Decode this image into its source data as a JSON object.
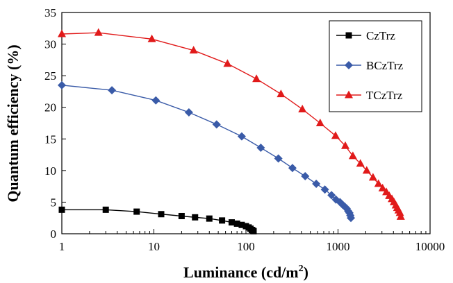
{
  "chart_data": {
    "type": "scatter",
    "xlabel": "Luminance (cd/m",
    "xlabel_sup": "2",
    "xlabel_end": ")",
    "ylabel": "Quantum efficiency (%)",
    "xscale": "log",
    "xlim": [
      1,
      10000
    ],
    "ylim": [
      0,
      35
    ],
    "xticks": [
      1,
      10,
      100,
      1000,
      10000
    ],
    "xtick_labels": [
      "1",
      "10",
      "100",
      "1000",
      "10000"
    ],
    "yticks": [
      0,
      5,
      10,
      15,
      20,
      25,
      30,
      35
    ],
    "ytick_labels": [
      "0",
      "5",
      "10",
      "15",
      "20",
      "25",
      "30",
      "35"
    ],
    "grid": false,
    "legend_position": "top-right",
    "series": [
      {
        "name": "CzTrz",
        "color": "#000000",
        "marker": "square",
        "x": [
          1,
          3,
          6.5,
          12,
          20,
          28,
          40,
          55,
          70,
          80,
          90,
          100,
          107,
          112,
          116,
          119,
          121
        ],
        "y": [
          3.8,
          3.8,
          3.5,
          3.1,
          2.8,
          2.6,
          2.4,
          2.1,
          1.8,
          1.6,
          1.4,
          1.2,
          1.0,
          0.8,
          0.6,
          0.5,
          0.4
        ]
      },
      {
        "name": "BCzTrz",
        "color": "#3a5ba8",
        "marker": "diamond",
        "x": [
          1,
          3.5,
          10.5,
          24,
          48,
          90,
          145,
          225,
          320,
          440,
          580,
          720,
          850,
          950,
          1050,
          1120,
          1180,
          1240,
          1290,
          1330,
          1360,
          1380
        ],
        "y": [
          23.5,
          22.7,
          21.1,
          19.2,
          17.3,
          15.4,
          13.6,
          11.9,
          10.4,
          9.1,
          7.9,
          7.0,
          6.1,
          5.4,
          5.0,
          4.6,
          4.3,
          4.0,
          3.6,
          3.3,
          2.9,
          2.5
        ]
      },
      {
        "name": "TCzTrz",
        "color": "#e11a1a",
        "marker": "triangle",
        "x": [
          1,
          2.5,
          9.5,
          27,
          63,
          130,
          240,
          410,
          640,
          940,
          1200,
          1450,
          1750,
          2050,
          2400,
          2750,
          3050,
          3350,
          3600,
          3850,
          4050,
          4250,
          4400,
          4550,
          4700,
          4800
        ],
        "y": [
          31.6,
          31.8,
          30.8,
          29.0,
          26.9,
          24.5,
          22.1,
          19.7,
          17.5,
          15.5,
          13.9,
          12.3,
          11.1,
          10.0,
          8.9,
          7.9,
          7.2,
          6.6,
          6.0,
          5.5,
          5.0,
          4.5,
          4.1,
          3.7,
          3.3,
          2.7
        ]
      }
    ]
  }
}
